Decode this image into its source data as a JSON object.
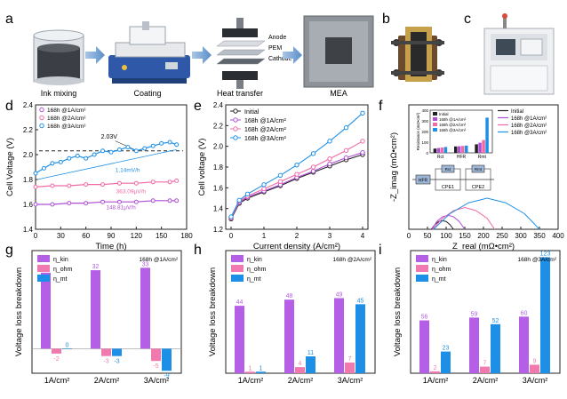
{
  "panel_letters": {
    "a": "a",
    "b": "b",
    "c": "c",
    "d": "d",
    "e": "e",
    "f": "f",
    "g": "g",
    "h": "h",
    "i": "i"
  },
  "process": {
    "steps": [
      "Ink mixing",
      "Coating",
      "Heat transfer",
      "MEA"
    ],
    "layers": [
      "Anode",
      "PEM",
      "Cathode"
    ]
  },
  "colors": {
    "black": "#222222",
    "purple": "#b04fd6",
    "pink": "#f06aa6",
    "blue": "#1e90e8",
    "bar_kin": "#b45fe6",
    "bar_ohm": "#f07ab0",
    "bar_mt": "#1e8fe6"
  },
  "chart_data": [
    {
      "panel": "d",
      "type": "line",
      "xlabel": "Time (h)",
      "ylabel": "Cell Voltage (V)",
      "xlim": [
        0,
        180
      ],
      "ylim": [
        1.4,
        2.4
      ],
      "xticks": [
        "0",
        "30",
        "60",
        "90",
        "120",
        "150",
        "180"
      ],
      "yticks": [
        "1.4",
        "1.6",
        "1.8",
        "2.0",
        "2.2",
        "2.4"
      ],
      "legend": [
        "168h @1A/cm²",
        "168h @2A/cm²",
        "168h @3A/cm²"
      ],
      "annotations": {
        "ref": "2.03V",
        "rate3": "1.14mV/h",
        "rate2": "363.09μV/h",
        "rate1": "148.81μV/h"
      },
      "series": [
        {
          "name": "168h @3A/cm²",
          "x": [
            0,
            10,
            20,
            30,
            40,
            50,
            60,
            70,
            80,
            90,
            100,
            110,
            120,
            130,
            140,
            150,
            160,
            168
          ],
          "y": [
            1.85,
            1.89,
            1.93,
            1.94,
            1.97,
            1.99,
            1.97,
            2.0,
            2.03,
            2.02,
            2.04,
            2.06,
            2.03,
            2.05,
            2.07,
            2.09,
            2.1,
            2.08
          ]
        },
        {
          "name": "168h @2A/cm²",
          "x": [
            0,
            20,
            40,
            60,
            80,
            100,
            120,
            140,
            160,
            168
          ],
          "y": [
            1.74,
            1.75,
            1.75,
            1.76,
            1.76,
            1.77,
            1.77,
            1.78,
            1.78,
            1.79
          ]
        },
        {
          "name": "168h @1A/cm²",
          "x": [
            0,
            20,
            40,
            60,
            80,
            100,
            120,
            140,
            160,
            168
          ],
          "y": [
            1.6,
            1.6,
            1.61,
            1.61,
            1.62,
            1.62,
            1.62,
            1.63,
            1.63,
            1.63
          ]
        }
      ]
    },
    {
      "panel": "e",
      "type": "line",
      "xlabel": "Current density (A/cm²)",
      "ylabel": "Cell voltage (V)",
      "xlim": [
        0,
        4
      ],
      "ylim": [
        1.2,
        2.4
      ],
      "xticks": [
        "0",
        "1",
        "2",
        "3",
        "4"
      ],
      "yticks": [
        "1.2",
        "1.4",
        "1.6",
        "1.8",
        "2.0",
        "2.2",
        "2.4"
      ],
      "legend": [
        "Initial",
        "168h @1A/cm²",
        "168h @2A/cm²",
        "168h @3A/cm²"
      ],
      "series": [
        {
          "name": "Initial",
          "x": [
            0,
            0.25,
            0.5,
            1,
            1.5,
            2,
            2.5,
            3,
            3.5,
            4
          ],
          "y": [
            1.3,
            1.45,
            1.5,
            1.56,
            1.62,
            1.69,
            1.75,
            1.81,
            1.87,
            1.92
          ]
        },
        {
          "name": "168h @1A/cm²",
          "x": [
            0,
            0.25,
            0.5,
            1,
            1.5,
            2,
            2.5,
            3,
            3.5,
            4
          ],
          "y": [
            1.31,
            1.46,
            1.51,
            1.57,
            1.63,
            1.7,
            1.76,
            1.83,
            1.89,
            1.94
          ]
        },
        {
          "name": "168h @2A/cm²",
          "x": [
            0,
            0.25,
            0.5,
            1,
            1.5,
            2,
            2.5,
            3,
            3.5,
            4
          ],
          "y": [
            1.31,
            1.47,
            1.52,
            1.59,
            1.66,
            1.73,
            1.8,
            1.88,
            1.96,
            2.05
          ]
        },
        {
          "name": "168h @3A/cm²",
          "x": [
            0,
            0.25,
            0.5,
            1,
            1.5,
            2,
            2.5,
            3,
            3.5,
            4
          ],
          "y": [
            1.32,
            1.48,
            1.54,
            1.63,
            1.72,
            1.82,
            1.93,
            2.05,
            2.18,
            2.32
          ]
        }
      ]
    },
    {
      "panel": "f",
      "type": "line",
      "xlabel": "Z_real (mΩ•cm²)",
      "ylabel": "-Z_imag (mΩ•cm²)",
      "xlim": [
        0,
        400
      ],
      "xticks": [
        "0",
        "50",
        "100",
        "150",
        "200",
        "250",
        "300",
        "350",
        "400"
      ],
      "legend": [
        "Initial",
        "168h @1A/cm²",
        "168h @2A/cm²",
        "168h @3A/cm²"
      ],
      "inset": {
        "ylabel": "Resistance (mΩ•cm²)",
        "ylim": [
          0,
          400
        ],
        "yticks": [
          "0",
          "100",
          "200",
          "300",
          "400"
        ],
        "categories": [
          "Rct",
          "HFR",
          "Rmt"
        ],
        "series": [
          {
            "name": "Initial",
            "values": [
              40,
              60,
              80
            ]
          },
          {
            "name": "168h @1A/cm²",
            "values": [
              45,
              62,
              95
            ]
          },
          {
            "name": "168h @2A/cm²",
            "values": [
              50,
              65,
              120
            ]
          },
          {
            "name": "168h @3A/cm²",
            "values": [
              55,
              68,
              330
            ]
          }
        ]
      },
      "circuit": {
        "hfr": "HFR",
        "r1": "Rct",
        "r2": "Rmt",
        "c1": "CPE1",
        "c2": "CPE2"
      },
      "series": [
        {
          "name": "Initial",
          "x": [
            60,
            70,
            80,
            90,
            100,
            110,
            120
          ],
          "y": [
            0,
            6,
            10,
            11,
            10,
            6,
            0
          ]
        },
        {
          "name": "168h @1A/cm²",
          "x": [
            62,
            75,
            90,
            105,
            120,
            135,
            150
          ],
          "y": [
            0,
            10,
            16,
            18,
            16,
            10,
            0
          ]
        },
        {
          "name": "168h @2A/cm²",
          "x": [
            64,
            90,
            120,
            150,
            180,
            210,
            230
          ],
          "y": [
            0,
            14,
            24,
            28,
            24,
            14,
            0
          ]
        },
        {
          "name": "168h @3A/cm²",
          "x": [
            66,
            110,
            160,
            210,
            260,
            310,
            350
          ],
          "y": [
            0,
            20,
            34,
            40,
            34,
            20,
            0
          ]
        }
      ]
    },
    {
      "panel": "g",
      "type": "bar",
      "ylabel": "Voltage loss breakdown",
      "label": "168h @1A/cm²",
      "categories": [
        "1A/cm²",
        "2A/cm²",
        "3A/cm²"
      ],
      "legend": [
        "η_kin",
        "η_ohm",
        "η_mt"
      ],
      "ylim": [
        -10,
        40
      ],
      "series": [
        {
          "name": "η_kin",
          "values": [
            31,
            32,
            33
          ]
        },
        {
          "name": "η_ohm",
          "values": [
            -2,
            -3,
            -5
          ]
        },
        {
          "name": "η_mt",
          "values": [
            0,
            -3,
            -9
          ]
        }
      ]
    },
    {
      "panel": "h",
      "type": "bar",
      "ylabel": "Voltage loss breakdown",
      "label": "168h @2A/cm²",
      "categories": [
        "1A/cm²",
        "2A/cm²",
        "3A/cm²"
      ],
      "legend": [
        "η_kin",
        "η_ohm",
        "η_mt"
      ],
      "ylim": [
        0,
        80
      ],
      "series": [
        {
          "name": "η_kin",
          "values": [
            44,
            48,
            49
          ]
        },
        {
          "name": "η_ohm",
          "values": [
            1,
            4,
            7
          ]
        },
        {
          "name": "η_mt",
          "values": [
            1,
            11,
            45
          ]
        }
      ]
    },
    {
      "panel": "i",
      "type": "bar",
      "ylabel": "Voltage loss breakdown",
      "label": "168h @3A/cm²",
      "categories": [
        "1A/cm²",
        "2A/cm²",
        "3A/cm²"
      ],
      "legend": [
        "η_kin",
        "η_ohm",
        "η_mt"
      ],
      "ylim": [
        0,
        130
      ],
      "series": [
        {
          "name": "η_kin",
          "values": [
            56,
            59,
            60
          ]
        },
        {
          "name": "η_ohm",
          "values": [
            2,
            7,
            9
          ]
        },
        {
          "name": "η_mt",
          "values": [
            23,
            52,
            123
          ]
        }
      ]
    }
  ]
}
